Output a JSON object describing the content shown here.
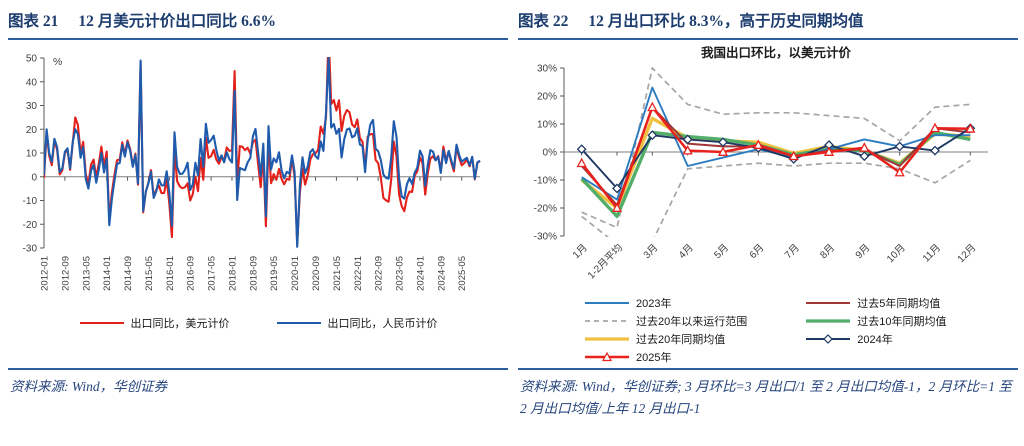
{
  "colors": {
    "header_text": "#1c3d6e",
    "header_rule": "#2d5f9e",
    "source_text": "#27457d",
    "axis": "#595959",
    "tick_label": "#404040",
    "zero_line": "#7f7f7f"
  },
  "left_panel": {
    "header": {
      "tag": "图表 21",
      "title": "12 月美元计价出口同比 6.6%"
    },
    "source": "资料来源: Wind，华创证券"
  },
  "right_panel": {
    "header": {
      "tag": "图表 22",
      "title": "12 月出口环比 8.3%，高于历史同期均值"
    },
    "source": "资料来源: Wind，华创证券; 3 月环比=3 月出口/1 至 2 月出口均值-1，2 月环比=1 至 2 月出口均值/上年 12 月出口-1"
  },
  "chart_data": [
    {
      "type": "line",
      "title": "",
      "xlabel": "",
      "ylabel": "%",
      "ylim": [
        -30,
        50
      ],
      "ytick_step": 10,
      "grid": false,
      "legend_position": "bottom",
      "x_start": "2012-01",
      "x_freq": "monthly",
      "x_tick_every": 8,
      "x_tick_labels": [
        "2012-01",
        "2012-09",
        "2013-05",
        "2014-01",
        "2014-09",
        "2015-05",
        "2016-01",
        "2016-09",
        "2017-05",
        "2018-01",
        "2018-09",
        "2019-05",
        "2020-01",
        "2020-09",
        "2021-05",
        "2022-01",
        "2022-09",
        "2023-05",
        "2024-01",
        "2024-09",
        "2025-05"
      ],
      "series": [
        {
          "key": "usd-yoy",
          "name": "出口同比，美元计价",
          "color": "#e3211a",
          "lw": 2.1,
          "values": [
            -0.5,
            18.4,
            8.9,
            4.9,
            15.3,
            11.3,
            1.0,
            2.7,
            9.9,
            11.6,
            2.9,
            14.1,
            25.0,
            21.8,
            10.0,
            14.7,
            1.0,
            -3.1,
            5.1,
            7.2,
            -0.3,
            5.6,
            12.7,
            4.3,
            10.6,
            -18.1,
            -6.6,
            0.9,
            7.0,
            7.2,
            14.5,
            9.4,
            15.3,
            11.6,
            4.7,
            9.7,
            -3.3,
            48.3,
            -15.0,
            -6.4,
            -2.5,
            2.8,
            -8.3,
            -5.5,
            -3.7,
            -6.9,
            -6.8,
            -1.4,
            -11.2,
            -25.4,
            11.5,
            -1.8,
            -4.1,
            -4.8,
            -4.4,
            -2.8,
            -10.0,
            -7.3,
            0.1,
            -6.1,
            7.9,
            -1.3,
            16.4,
            8.0,
            8.7,
            11.3,
            7.2,
            5.5,
            8.1,
            6.9,
            12.3,
            10.9,
            11.1,
            44.5,
            -2.7,
            12.9,
            12.6,
            11.2,
            12.2,
            9.8,
            14.5,
            15.6,
            5.4,
            -4.4,
            9.1,
            -20.8,
            14.2,
            -2.7,
            1.1,
            -1.3,
            3.3,
            -1.0,
            -3.2,
            -0.9,
            -1.3,
            7.9,
            0.0,
            -28.0,
            -6.6,
            3.5,
            -3.3,
            0.5,
            7.2,
            9.5,
            9.9,
            11.4,
            21.1,
            18.1,
            24.8,
            60.6,
            30.6,
            32.3,
            27.9,
            32.2,
            19.3,
            25.6,
            28.1,
            27.1,
            22.0,
            20.9,
            24.1,
            16.3,
            14.7,
            3.9,
            16.9,
            17.9,
            18.0,
            7.1,
            5.7,
            -0.3,
            -8.9,
            -9.9,
            -10.5,
            -1.3,
            14.8,
            8.5,
            -7.5,
            -12.4,
            -14.5,
            -8.8,
            -6.2,
            -6.4,
            0.5,
            2.3,
            8.2,
            5.6,
            -7.5,
            1.5,
            7.6,
            8.6,
            7.0,
            8.7,
            2.4,
            12.7,
            6.7,
            10.7,
            6.0,
            2.3,
            12.4,
            8.1,
            4.8,
            5.8,
            7.2,
            4.4,
            8.3,
            -1.1,
            5.9,
            6.6
          ]
        },
        {
          "key": "cny-yoy",
          "name": "出口同比，人民币计价",
          "color": "#1f5bad",
          "lw": 2.1,
          "values": [
            0.7,
            20.0,
            10.0,
            6.2,
            16.0,
            12.5,
            2.0,
            3.5,
            10.5,
            12.0,
            3.5,
            14.5,
            20.0,
            18.0,
            8.0,
            12.5,
            -1.0,
            -5.0,
            2.5,
            5.0,
            -2.5,
            3.0,
            9.9,
            1.8,
            7.6,
            -20.4,
            -9.2,
            -1.6,
            5.4,
            5.8,
            13.5,
            8.5,
            14.5,
            10.9,
            4.2,
            9.1,
            -2.8,
            48.9,
            -14.4,
            -6.2,
            -2.8,
            2.1,
            -8.9,
            -6.1,
            -1.1,
            -3.6,
            -3.7,
            2.3,
            -6.6,
            -20.6,
            18.7,
            4.1,
            1.2,
            1.3,
            2.9,
            5.9,
            -5.6,
            -3.2,
            5.9,
            0.6,
            15.9,
            4.2,
            22.3,
            14.3,
            15.5,
            17.3,
            11.2,
            6.9,
            9.0,
            6.1,
            10.3,
            7.4,
            6.0,
            36.2,
            -9.8,
            3.7,
            3.2,
            2.8,
            6.0,
            7.9,
            17.0,
            20.1,
            10.2,
            0.2,
            13.9,
            -16.6,
            21.3,
            3.1,
            7.7,
            6.1,
            10.3,
            2.6,
            -0.7,
            2.1,
            1.3,
            9.0,
            2.0,
            -29.5,
            -3.5,
            8.2,
            1.4,
            4.3,
            10.4,
            11.6,
            8.7,
            7.6,
            14.9,
            10.9,
            27.0,
            50.1,
            20.7,
            22.2,
            18.1,
            20.2,
            8.1,
            15.7,
            19.9,
            20.3,
            16.6,
            17.3,
            20.4,
            13.6,
            12.9,
            1.9,
            15.3,
            22.0,
            23.9,
            11.8,
            10.7,
            7.0,
            0.9,
            -0.5,
            -0.8,
            8.0,
            23.4,
            16.8,
            -0.8,
            -8.3,
            -9.2,
            -3.2,
            -0.6,
            -3.1,
            1.7,
            3.8,
            11.0,
            8.5,
            -3.8,
            5.1,
            11.2,
            10.6,
            6.9,
            8.4,
            1.6,
            11.2,
            5.8,
            10.9,
            6.9,
            3.4,
            13.5,
            9.3,
            6.3,
            7.2,
            8.0,
            4.8,
            8.4,
            -0.8,
            6.0,
            6.8
          ]
        }
      ]
    },
    {
      "type": "line",
      "title": "我国出口环比，以美元计价",
      "xlabel": "",
      "ylabel": "",
      "ylim": [
        -30,
        30
      ],
      "ytick_step": 10,
      "grid": false,
      "legend_position": "bottom",
      "categories": [
        "1月",
        "1-2月平均",
        "3月",
        "4月",
        "5月",
        "6月",
        "7月",
        "8月",
        "9月",
        "10月",
        "11月",
        "12月"
      ],
      "legend_columns": [
        [
          0,
          1,
          2,
          3
        ],
        [
          4,
          5,
          6
        ]
      ],
      "series": [
        {
          "key": "y2023",
          "name": "2023年",
          "color": "#2b7cc0",
          "lw": 1.9,
          "z": 4,
          "values": [
            -9.0,
            -17.0,
            23.0,
            -5.0,
            -2.0,
            1.0,
            -2.0,
            1.0,
            4.5,
            2.0,
            6.0,
            6.0
          ]
        },
        {
          "key": "range-20y",
          "name": "过去20年以来运行范围",
          "color": "#a6a6a6",
          "lw": 1.7,
          "z": 1,
          "style": "dashed",
          "values_upper": [
            -21.5,
            -27.0,
            30.0,
            17.0,
            13.5,
            14.0,
            14.0,
            13.0,
            12.0,
            4.0,
            16.0,
            17.0
          ],
          "values_lower": [
            -23.0,
            -33.0,
            -32.0,
            -6.0,
            -5.0,
            -4.0,
            -5.0,
            -4.0,
            -4.0,
            -6.0,
            -11.0,
            -3.0
          ]
        },
        {
          "key": "avg-20y",
          "name": "过去20年同期均值",
          "color": "#f0c040",
          "lw": 3.4,
          "z": 2,
          "values": [
            -10.0,
            -20.0,
            12.0,
            5.0,
            4.0,
            3.5,
            -0.5,
            2.0,
            0.5,
            -4.0,
            6.5,
            5.5
          ]
        },
        {
          "key": "y2025",
          "name": "2025年",
          "color": "#e8211d",
          "lw": 2.5,
          "z": 7,
          "marker": "triangle",
          "values": [
            -4.0,
            -20.0,
            16.0,
            0.5,
            0.0,
            2.5,
            -1.5,
            0.0,
            1.5,
            -7.3,
            8.5,
            8.3
          ]
        },
        {
          "key": "avg-5y",
          "name": "过去5年同期均值",
          "color": "#a03636",
          "lw": 2.0,
          "z": 5,
          "values": [
            -5.0,
            -19.0,
            16.0,
            3.0,
            2.0,
            2.0,
            -1.5,
            0.5,
            1.0,
            -5.0,
            8.5,
            7.0
          ]
        },
        {
          "key": "avg-10y",
          "name": "过去10年同期均值",
          "color": "#52ae68",
          "lw": 3.4,
          "z": 3,
          "values": [
            -9.5,
            -23.0,
            7.0,
            5.5,
            4.5,
            2.5,
            -1.0,
            1.0,
            0.5,
            -4.5,
            7.0,
            4.5
          ]
        },
        {
          "key": "y2024",
          "name": "2024年",
          "color": "#1f3864",
          "lw": 1.9,
          "z": 6,
          "marker": "diamond",
          "values": [
            1.0,
            -13.0,
            6.0,
            4.5,
            3.5,
            1.5,
            -2.5,
            2.5,
            -1.5,
            2.0,
            0.5,
            8.5
          ]
        }
      ]
    }
  ]
}
